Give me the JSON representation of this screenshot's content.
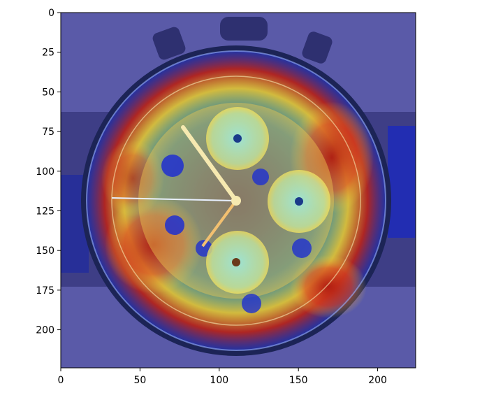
{
  "figure": {
    "image_subject": "chronograph-watch-heatmap-overlay",
    "xaxis": {
      "ticks": [
        0,
        50,
        100,
        150,
        200
      ],
      "range": [
        0,
        224
      ]
    },
    "yaxis": {
      "ticks": [
        0,
        25,
        50,
        75,
        100,
        125,
        150,
        175,
        200
      ],
      "range": [
        0,
        224
      ]
    },
    "colors": {
      "background": "#5a5aa8",
      "heatmap_hot": "#c8261a",
      "heatmap_warm": "#f2d53a",
      "heatmap_cool": "#3fd0e0",
      "axis": "#000000"
    }
  }
}
